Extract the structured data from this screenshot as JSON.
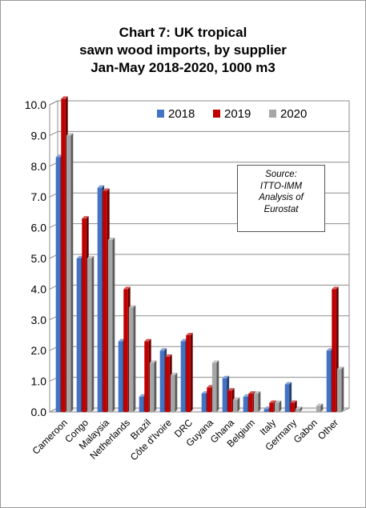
{
  "title_lines": [
    "Chart 7: UK tropical",
    "sawn wood imports, by supplier",
    "Jan-May 2018-2020, 1000 m3"
  ],
  "source_lines": [
    "Source:",
    "ITTO-IMM",
    "Analysis of",
    "Eurostat"
  ],
  "colors": {
    "2018": "#4472c4",
    "2019": "#c00000",
    "2020": "#a6a6a6"
  },
  "chart_data": {
    "type": "bar",
    "title": "Chart 7: UK tropical sawn wood imports, by supplier Jan-May 2018-2020, 1000 m3",
    "categories": [
      "Cameroon",
      "Congo",
      "Malaysia",
      "Netherlands",
      "Brazil",
      "Côte d'Ivoire",
      "DRC",
      "Guyana",
      "Ghana",
      "Belgium",
      "Italy",
      "Germany",
      "Gabon",
      "Other"
    ],
    "series": [
      {
        "name": "2018",
        "values": [
          8.3,
          5.0,
          7.3,
          2.3,
          0.5,
          2.0,
          2.3,
          0.6,
          1.1,
          0.5,
          0.1,
          0.9,
          0.0,
          2.0
        ]
      },
      {
        "name": "2019",
        "values": [
          10.2,
          6.3,
          7.2,
          4.0,
          2.3,
          1.8,
          2.5,
          0.8,
          0.7,
          0.6,
          0.3,
          0.3,
          0.0,
          4.0
        ]
      },
      {
        "name": "2020",
        "values": [
          9.0,
          5.0,
          5.6,
          3.4,
          1.6,
          1.2,
          0.0,
          1.6,
          0.4,
          0.6,
          0.3,
          0.1,
          0.2,
          1.4
        ]
      }
    ],
    "yticks": [
      "0.0",
      "1.0",
      "2.0",
      "3.0",
      "4.0",
      "5.0",
      "6.0",
      "7.0",
      "8.0",
      "9.0",
      "10.0"
    ],
    "ylim": [
      0,
      10
    ],
    "grid": true,
    "legend": "top-right"
  }
}
